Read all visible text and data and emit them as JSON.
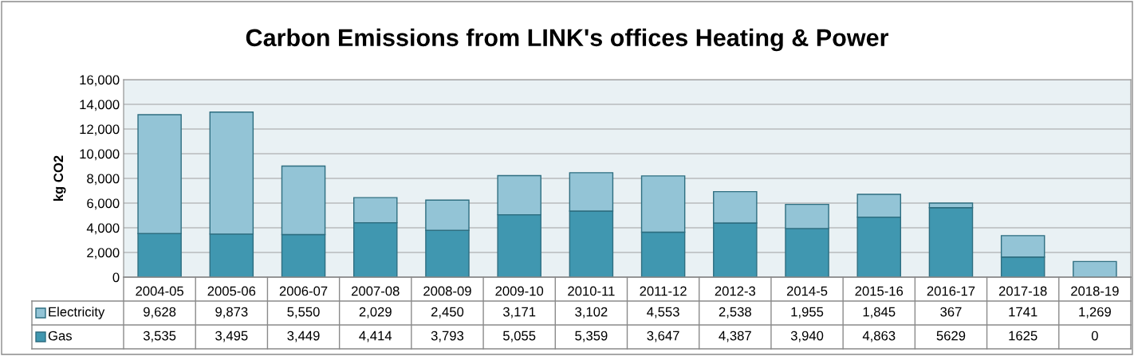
{
  "chart_data": {
    "type": "bar",
    "title": "Carbon Emissions from LINK's offices Heating & Power",
    "ylabel": "kg CO2",
    "stacked": true,
    "categories": [
      "2004-05",
      "2005-06",
      "2006-07",
      "2007-08",
      "2008-09",
      "2009-10",
      "2010-11",
      "2011-12",
      "2012-3",
      "2014-5",
      "2015-16",
      "2016-17",
      "2017-18",
      "2018-19"
    ],
    "series": [
      {
        "name": "Gas",
        "color": "#4097b0",
        "values": [
          3535,
          3495,
          3449,
          4414,
          3793,
          5055,
          5359,
          3647,
          4387,
          3940,
          4863,
          5629,
          1625,
          0
        ],
        "value_labels": [
          "3,535",
          "3,495",
          "3,449",
          "4,414",
          "3,793",
          "5,055",
          "5,359",
          "3,647",
          "4,387",
          "3,940",
          "4,863",
          "5629",
          "1625",
          "0"
        ]
      },
      {
        "name": "Electricity",
        "color": "#93c4d6",
        "values": [
          9628,
          9873,
          5550,
          2029,
          2450,
          3171,
          3102,
          4553,
          2538,
          1955,
          1845,
          367,
          1741,
          1269
        ],
        "value_labels": [
          "9,628",
          "9,873",
          "5,550",
          "2,029",
          "2,450",
          "3,171",
          "3,102",
          "4,553",
          "2,538",
          "1,955",
          "1,845",
          "367",
          "1741",
          "1,269"
        ]
      }
    ],
    "ylim": [
      0,
      16000
    ],
    "yticks": [
      {
        "value": 0,
        "label": "0"
      },
      {
        "value": 2000,
        "label": "2,000"
      },
      {
        "value": 4000,
        "label": "4,000"
      },
      {
        "value": 6000,
        "label": "6,000"
      },
      {
        "value": 8000,
        "label": "8,000"
      },
      {
        "value": 10000,
        "label": "10,000"
      },
      {
        "value": 12000,
        "label": "12,000"
      },
      {
        "value": 14000,
        "label": "14,000"
      },
      {
        "value": 16000,
        "label": "16,000"
      }
    ],
    "grid": "y",
    "legend": "bottom"
  }
}
